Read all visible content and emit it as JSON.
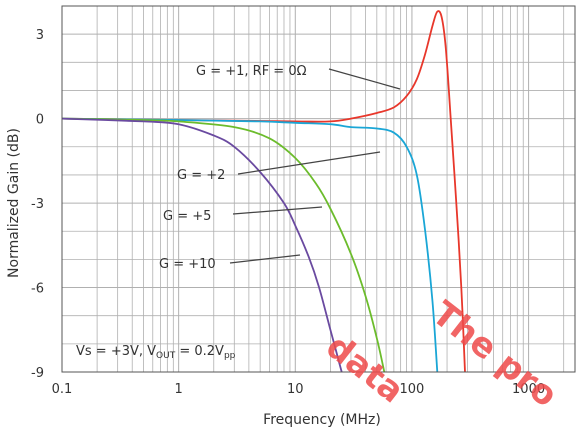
{
  "chart_data": {
    "type": "line",
    "title": "",
    "xlabel": "Frequency (MHz)",
    "ylabel": "Normalized Gain (dB)",
    "xscale": "log",
    "xlim": [
      0.1,
      2500
    ],
    "ylim": [
      -9,
      4
    ],
    "grid": true,
    "x_ticks": [
      0.1,
      1,
      10,
      100,
      1000
    ],
    "x_tick_labels": [
      "0.1",
      "1",
      "10",
      "100",
      "1000"
    ],
    "y_ticks": [
      3,
      0,
      -3,
      -6,
      -9
    ],
    "y_tick_labels": [
      "3",
      "0",
      "-3",
      "-6",
      "-9"
    ],
    "series": [
      {
        "name": "G = +1, RF = 0Ω",
        "color": "#e8372b",
        "points": [
          [
            0.1,
            0
          ],
          [
            1,
            -0.05
          ],
          [
            10,
            -0.1
          ],
          [
            20,
            -0.1
          ],
          [
            30,
            0
          ],
          [
            50,
            0.2
          ],
          [
            70,
            0.4
          ],
          [
            90,
            0.8
          ],
          [
            110,
            1.4
          ],
          [
            130,
            2.3
          ],
          [
            150,
            3.3
          ],
          [
            165,
            3.8
          ],
          [
            180,
            3.6
          ],
          [
            195,
            2.5
          ],
          [
            215,
            0
          ],
          [
            240,
            -3
          ],
          [
            265,
            -6
          ],
          [
            285,
            -9
          ]
        ]
      },
      {
        "name": "G = +2",
        "color": "#1aa6d6",
        "points": [
          [
            0.1,
            0
          ],
          [
            1,
            -0.05
          ],
          [
            5,
            -0.1
          ],
          [
            10,
            -0.15
          ],
          [
            20,
            -0.2
          ],
          [
            30,
            -0.3
          ],
          [
            50,
            -0.35
          ],
          [
            70,
            -0.5
          ],
          [
            90,
            -1.0
          ],
          [
            110,
            -2.0
          ],
          [
            130,
            -4.0
          ],
          [
            150,
            -6.5
          ],
          [
            165,
            -9
          ]
        ]
      },
      {
        "name": "G = +5",
        "color": "#6cbc2c",
        "points": [
          [
            0.1,
            0
          ],
          [
            0.5,
            -0.05
          ],
          [
            1,
            -0.1
          ],
          [
            3,
            -0.3
          ],
          [
            6,
            -0.7
          ],
          [
            10,
            -1.4
          ],
          [
            15,
            -2.3
          ],
          [
            20,
            -3.2
          ],
          [
            30,
            -4.8
          ],
          [
            40,
            -6.3
          ],
          [
            50,
            -7.8
          ],
          [
            58,
            -9
          ]
        ]
      },
      {
        "name": "G = +10",
        "color": "#6a4aa0",
        "points": [
          [
            0.1,
            0
          ],
          [
            0.5,
            -0.1
          ],
          [
            1,
            -0.2
          ],
          [
            2,
            -0.6
          ],
          [
            3,
            -1.0
          ],
          [
            5,
            -1.9
          ],
          [
            8,
            -3.0
          ],
          [
            10,
            -3.8
          ],
          [
            13,
            -4.9
          ],
          [
            16,
            -6.0
          ],
          [
            20,
            -7.5
          ],
          [
            25,
            -9
          ]
        ]
      }
    ]
  },
  "annotations": {
    "g1": "G = +1, RF = 0Ω",
    "g2": "G = +2",
    "g5": "G = +5",
    "g10": "G = +10",
    "cond_prefix": "Vs = +3V, V",
    "cond_out_sub": "OUT",
    "cond_mid": " = 0.2V",
    "cond_pp_sub": "pp"
  },
  "watermark": {
    "line1": "The pro",
    "line2": "data"
  },
  "colors": {
    "grid": "#b0b0b0",
    "frame": "#555555"
  }
}
